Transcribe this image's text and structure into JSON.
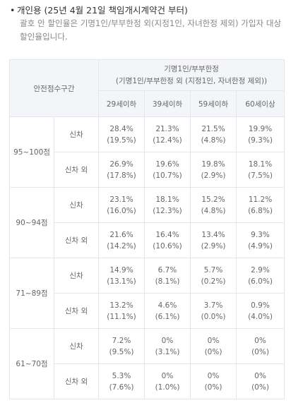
{
  "heading": {
    "bullet": "•",
    "title": "개인용 (25년 4월 21일 책임개시계약건 부터)"
  },
  "note": "괄호 안 할인율은 기명1인/부부한정 외(지정1인, 자녀한정 제외) 가입자 대상 할인율입니다.",
  "table": {
    "section_header": "안전점수구간",
    "group_header": "기명1인/부부한정",
    "group_subheader": "(기명1인/부부한정 외 (지정1인, 자녀한정 제외))",
    "age_headers": [
      "29세이하",
      "39세이하",
      "59세이하",
      "60세이상"
    ],
    "sections": [
      {
        "label": "95~100점",
        "rows": [
          {
            "type": "신차",
            "values": [
              {
                "main": "28.4%",
                "sub": "(19.5%)"
              },
              {
                "main": "21.3%",
                "sub": "(12.4%)"
              },
              {
                "main": "21.5%",
                "sub": "(4.8%)"
              },
              {
                "main": "19.9%",
                "sub": "(9.3%)"
              }
            ]
          },
          {
            "type": "신차 외",
            "values": [
              {
                "main": "26.9%",
                "sub": "(17.8%)"
              },
              {
                "main": "19.6%",
                "sub": "(10.7%)"
              },
              {
                "main": "19.8%",
                "sub": "(2.9%)"
              },
              {
                "main": "18.1%",
                "sub": "(7.5%)"
              }
            ]
          }
        ]
      },
      {
        "label": "90~94점",
        "rows": [
          {
            "type": "신차",
            "values": [
              {
                "main": "23.1%",
                "sub": "(16.0%)"
              },
              {
                "main": "18.1%",
                "sub": "(12.3%)"
              },
              {
                "main": "15.2%",
                "sub": "(4.8%)"
              },
              {
                "main": "11.2%",
                "sub": "(6.8%)"
              }
            ]
          },
          {
            "type": "신차 외",
            "values": [
              {
                "main": "21.6%",
                "sub": "(14.2%)"
              },
              {
                "main": "16.4%",
                "sub": "(10.6%)"
              },
              {
                "main": "13.4%",
                "sub": "(2.9%)"
              },
              {
                "main": "9.3%",
                "sub": "(4.9%)"
              }
            ]
          }
        ]
      },
      {
        "label": "71~89점",
        "rows": [
          {
            "type": "신차",
            "values": [
              {
                "main": "14.9%",
                "sub": "(13.1%)"
              },
              {
                "main": "6.7%",
                "sub": "(8.1%)"
              },
              {
                "main": "5.7%",
                "sub": "(0.2%)"
              },
              {
                "main": "2.9%",
                "sub": "(6.0%)"
              }
            ]
          },
          {
            "type": "신차 외",
            "values": [
              {
                "main": "13.2%",
                "sub": "(11.1%)"
              },
              {
                "main": "4.6%",
                "sub": "(6.1%)"
              },
              {
                "main": "3.7%",
                "sub": "(0.0%)"
              },
              {
                "main": "0.9%",
                "sub": "(4.0%)"
              }
            ]
          }
        ]
      },
      {
        "label": "61~70점",
        "rows": [
          {
            "type": "신차",
            "values": [
              {
                "main": "7.2%",
                "sub": "(9.5%)"
              },
              {
                "main": "0%",
                "sub": "(3.1%)"
              },
              {
                "main": "0%",
                "sub": "(0%)"
              },
              {
                "main": "0%",
                "sub": "(0%)"
              }
            ]
          },
          {
            "type": "신차 외",
            "values": [
              {
                "main": "5.3%",
                "sub": "(7.6%)"
              },
              {
                "main": "0%",
                "sub": "(1.0%)"
              },
              {
                "main": "0%",
                "sub": "(0%)"
              },
              {
                "main": "0%",
                "sub": "(0%)"
              }
            ]
          }
        ]
      }
    ]
  }
}
